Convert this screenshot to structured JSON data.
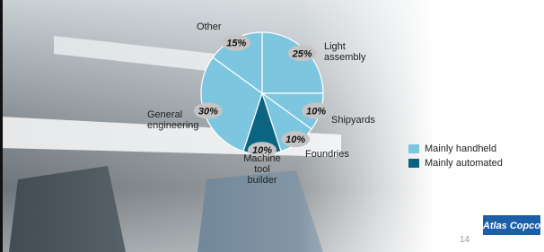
{
  "chart_data": {
    "type": "pie",
    "categories": [
      "Light assembly",
      "Shipyards",
      "Foundries",
      "Machine tool builder",
      "General engineering",
      "Other"
    ],
    "series": [
      {
        "name": "Mainly handheld",
        "color": "#7dc6df",
        "values": [
          25,
          10,
          10,
          null,
          30,
          15
        ]
      },
      {
        "name": "Mainly automated",
        "color": "#0b6580",
        "values": [
          null,
          null,
          null,
          10,
          null,
          null
        ]
      }
    ],
    "value_labels": [
      "25%",
      "10%",
      "10%",
      "10%",
      "30%",
      "15%"
    ]
  },
  "footer": {
    "page_number": "14",
    "logo": "Atlas Copco"
  }
}
